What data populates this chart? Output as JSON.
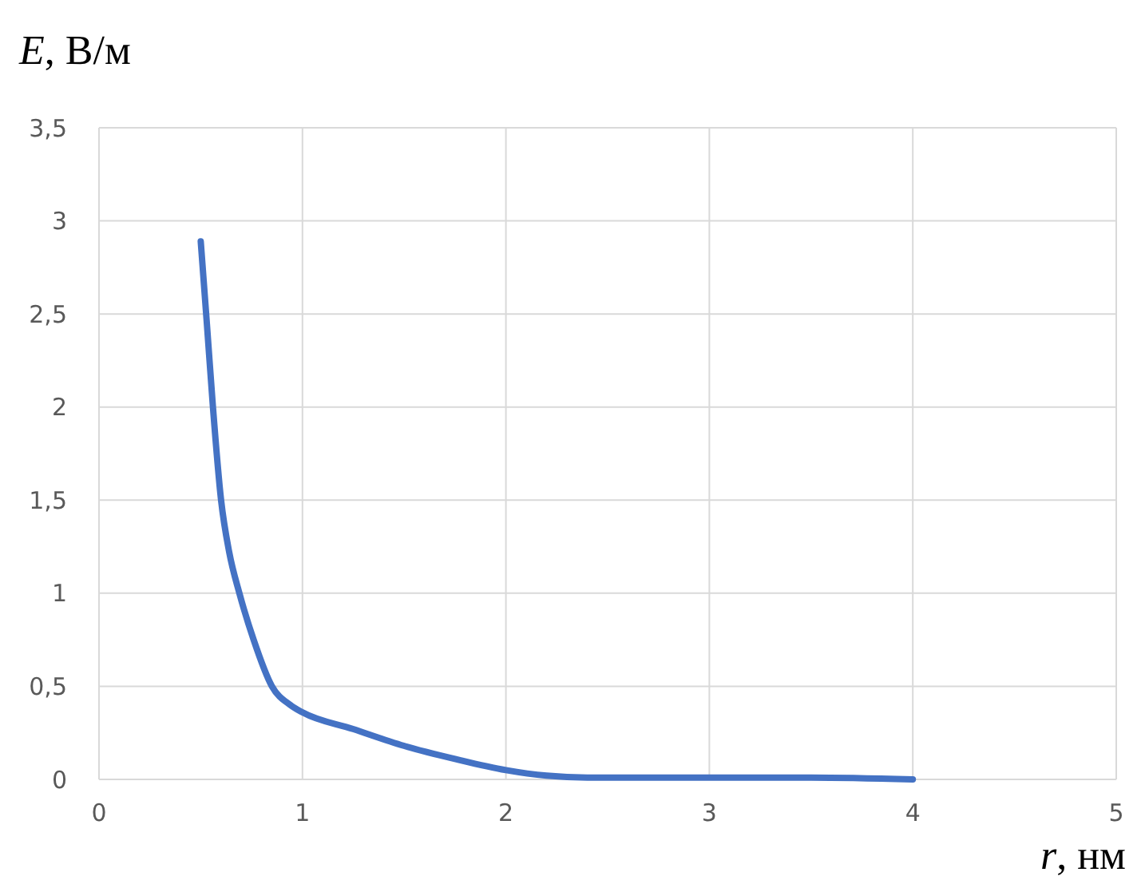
{
  "chart_data": {
    "type": "line",
    "xlabel": "r, нм",
    "ylabel": "E, В/м",
    "x": [
      0.5,
      0.53,
      0.56,
      0.6,
      0.64,
      0.69,
      0.76,
      0.85,
      0.94,
      1,
      1.25,
      1.5,
      1.75,
      2,
      2.2,
      2.4,
      3,
      3.5,
      4
    ],
    "series": [
      {
        "color": "#4472c4",
        "values": [
          2.89,
          2.45,
          2,
          1.5,
          1.22,
          1,
          0.75,
          0.5,
          0.4,
          0.36,
          0.27,
          0.18,
          0.11,
          0.05,
          0.02,
          0.01,
          0.01,
          0.01,
          0
        ]
      }
    ],
    "xlim": [
      0,
      5
    ],
    "xticks": [
      0,
      1,
      2,
      3,
      4,
      5
    ],
    "ylim": [
      0,
      3.5
    ],
    "yticks": [
      0,
      {
        "value": 0.5,
        "label": "0,5"
      },
      1,
      {
        "value": 1.5,
        "label": "1,5"
      },
      2,
      {
        "value": 2.5,
        "label": "2,5"
      },
      3,
      {
        "value": 3.5,
        "label": "3,5"
      }
    ],
    "grid": true,
    "marker": "none",
    "line_style": "solid"
  }
}
